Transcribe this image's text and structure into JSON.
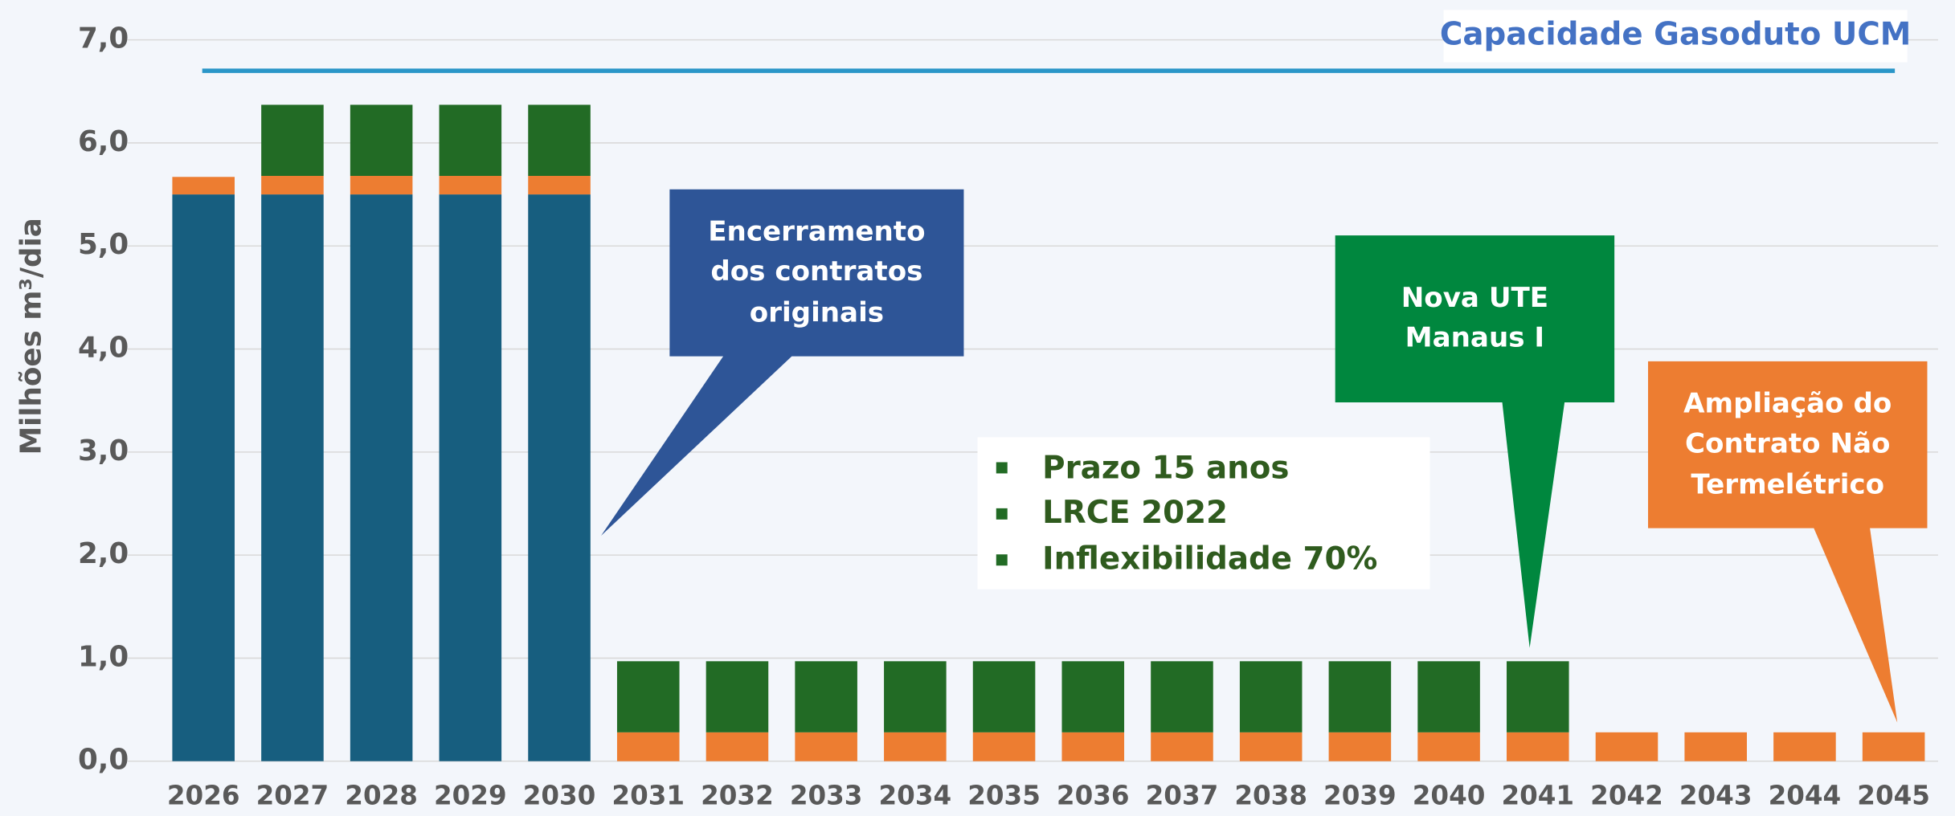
{
  "chart_data": {
    "type": "stacked_bar",
    "y_label": "Milhões m³/dia",
    "categories": [
      "2026",
      "2027",
      "2028",
      "2029",
      "2030",
      "2031",
      "2032",
      "2033",
      "2034",
      "2035",
      "2036",
      "2037",
      "2038",
      "2039",
      "2040",
      "2041",
      "2042",
      "2043",
      "2044",
      "2045"
    ],
    "series": [
      {
        "color": "#175e7f",
        "values": [
          5.5,
          5.5,
          5.5,
          5.5,
          5.5,
          0,
          0,
          0,
          0,
          0,
          0,
          0,
          0,
          0,
          0,
          0,
          0,
          0,
          0,
          0
        ]
      },
      {
        "color": "#ed7d31",
        "values": [
          0.17,
          0.18,
          0.18,
          0.18,
          0.18,
          0.28,
          0.28,
          0.28,
          0.28,
          0.28,
          0.28,
          0.28,
          0.28,
          0.28,
          0.28,
          0.28,
          0.28,
          0.28,
          0.28,
          0.28
        ]
      },
      {
        "color": "#226b25",
        "values": [
          0,
          0.69,
          0.69,
          0.69,
          0.69,
          0.69,
          0.69,
          0.69,
          0.69,
          0.69,
          0.69,
          0.69,
          0.69,
          0.69,
          0.69,
          0.69,
          0,
          0,
          0,
          0
        ]
      }
    ],
    "capacity": {
      "label": "Capacidade Gasoduto UCM",
      "value": 6.7,
      "color": "#2a96c8"
    },
    "ylim": [
      0,
      7
    ],
    "yticks": [
      {
        "value": 0,
        "label": "0,0"
      },
      {
        "value": 1,
        "label": "1,0"
      },
      {
        "value": 2,
        "label": "2,0"
      },
      {
        "value": 3,
        "label": "3,0"
      },
      {
        "value": 4,
        "label": "4,0"
      },
      {
        "value": 5,
        "label": "5,0"
      },
      {
        "value": 6,
        "label": "6,0"
      },
      {
        "value": 7,
        "label": "7,0"
      }
    ],
    "grid": true,
    "annotations": [
      {
        "lines": [
          "Encerramento",
          "dos contratos",
          "originais"
        ]
      },
      {
        "lines": [
          "Nova UTE",
          "Manaus I"
        ]
      },
      {
        "lines": [
          "Ampliação do",
          "Contrato Não",
          "Termelétrico"
        ]
      }
    ],
    "bullets": [
      "Prazo 15 anos",
      "LRCE 2022",
      "Inflexibilidade 70%"
    ]
  }
}
